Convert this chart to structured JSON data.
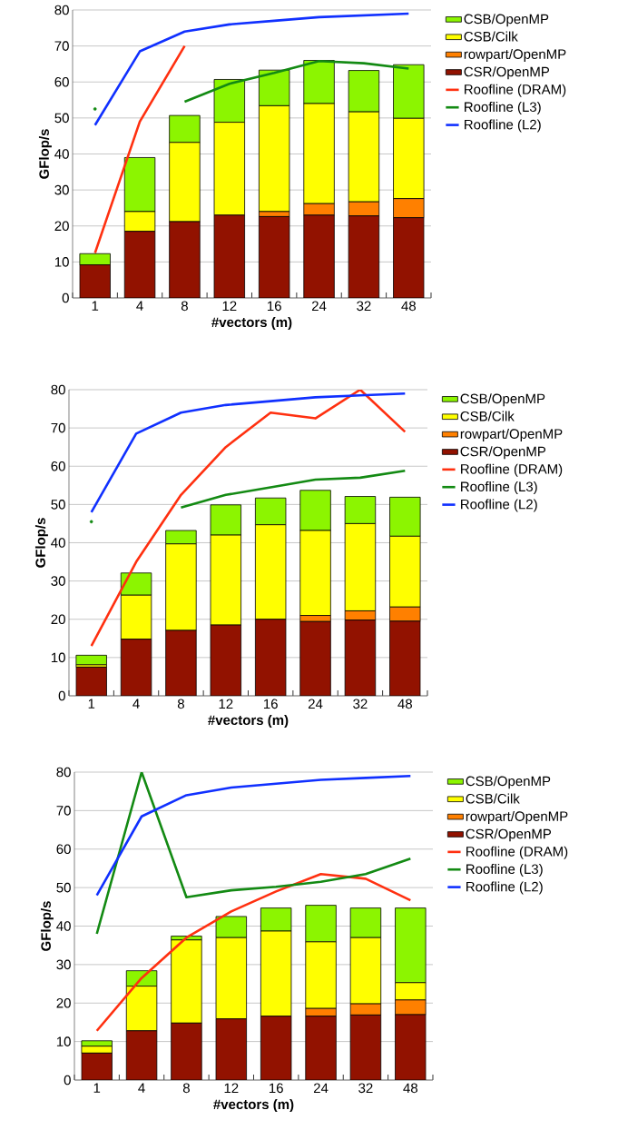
{
  "chart_data": [
    {
      "type": "bar",
      "stacked": true,
      "xlabel": "#vectors (m)",
      "ylabel": "GFlop/s",
      "categories": [
        "1",
        "4",
        "8",
        "12",
        "16",
        "24",
        "32",
        "48"
      ],
      "ylim": [
        0,
        80
      ],
      "yticks": [
        0,
        10,
        20,
        30,
        40,
        50,
        60,
        70,
        80
      ],
      "grid": "y",
      "legend": "right",
      "series": [
        {
          "name": "CSR/OpenMP",
          "color": "#921200",
          "values": [
            9.2,
            18.5,
            21.2,
            23,
            22.6,
            23,
            22.8,
            22.3
          ]
        },
        {
          "name": "rowpart/OpenMP",
          "color": "#ff8000",
          "values": [
            0,
            0,
            0,
            0,
            1.4,
            3.2,
            3.9,
            5.3
          ]
        },
        {
          "name": "CSB/Cilk",
          "color": "#ffff00",
          "values": [
            0,
            5.5,
            22,
            25.8,
            29.4,
            27.8,
            25,
            22.3
          ]
        },
        {
          "name": "CSB/OpenMP",
          "color": "#8cf500",
          "values": [
            3.1,
            15,
            7.5,
            11.9,
            9.9,
            12,
            11.5,
            14.9
          ]
        },
        {
          "name": "Roofline (DRAM)",
          "type": "line",
          "color": "#ff3010",
          "values": [
            12.5,
            49,
            70,
            null,
            null,
            null,
            null,
            null
          ]
        },
        {
          "name": "Roofline (L3)",
          "type": "line",
          "color": "#138a13",
          "values": [
            52.5,
            null,
            54.5,
            59.5,
            62.5,
            65.8,
            65.2,
            63.7
          ]
        },
        {
          "name": "Roofline (L2)",
          "type": "line",
          "color": "#1030ff",
          "values": [
            48,
            68.5,
            74,
            76,
            77,
            78,
            78.5,
            79
          ]
        }
      ]
    },
    {
      "type": "bar",
      "stacked": true,
      "xlabel": "#vectors (m)",
      "ylabel": "GFlop/s",
      "categories": [
        "1",
        "4",
        "8",
        "12",
        "16",
        "24",
        "32",
        "48"
      ],
      "ylim": [
        0,
        80
      ],
      "yticks": [
        0,
        10,
        20,
        30,
        40,
        50,
        60,
        70,
        80
      ],
      "grid": "y",
      "legend": "right",
      "series": [
        {
          "name": "CSR/OpenMP",
          "color": "#921200",
          "values": [
            7.5,
            14.8,
            17.1,
            18.5,
            20,
            19.4,
            19.8,
            19.5
          ]
        },
        {
          "name": "rowpart/OpenMP",
          "color": "#ff8000",
          "values": [
            0,
            0,
            0,
            0,
            0,
            1.6,
            2.4,
            3.7
          ]
        },
        {
          "name": "CSB/Cilk",
          "color": "#ffff00",
          "values": [
            0.6,
            11.5,
            22.6,
            23.5,
            24.7,
            22.2,
            22.8,
            18.5
          ]
        },
        {
          "name": "CSB/OpenMP",
          "color": "#8cf500",
          "values": [
            2.5,
            5.8,
            3.5,
            7.9,
            7,
            10.5,
            7.1,
            10.2
          ]
        },
        {
          "name": "Roofline (DRAM)",
          "type": "line",
          "color": "#ff3010",
          "values": [
            13,
            35,
            52.5,
            65,
            74,
            72.5,
            80,
            69
          ]
        },
        {
          "name": "Roofline (L3)",
          "type": "line",
          "color": "#138a13",
          "values": [
            45.5,
            null,
            49.2,
            52.5,
            54.5,
            56.5,
            57,
            58.8
          ]
        },
        {
          "name": "Roofline (L2)",
          "type": "line",
          "color": "#1030ff",
          "values": [
            48,
            68.5,
            74,
            76,
            77,
            78,
            78.5,
            79
          ]
        }
      ]
    },
    {
      "type": "bar",
      "stacked": true,
      "xlabel": "#vectors (m)",
      "ylabel": "GFlop/s",
      "categories": [
        "1",
        "4",
        "8",
        "12",
        "16",
        "24",
        "32",
        "48"
      ],
      "ylim": [
        0,
        80
      ],
      "yticks": [
        0,
        10,
        20,
        30,
        40,
        50,
        60,
        70,
        80
      ],
      "grid": "y",
      "legend": "right",
      "series": [
        {
          "name": "CSR/OpenMP",
          "color": "#921200",
          "values": [
            7,
            12.8,
            14.8,
            15.9,
            16.6,
            16.6,
            16.9,
            17
          ]
        },
        {
          "name": "rowpart/OpenMP",
          "color": "#ff8000",
          "values": [
            0,
            0,
            0,
            0,
            0,
            2,
            2.9,
            3.8
          ]
        },
        {
          "name": "CSB/Cilk",
          "color": "#ffff00",
          "values": [
            1.8,
            11.6,
            21.6,
            21.1,
            22.1,
            17.3,
            17.2,
            4.5
          ]
        },
        {
          "name": "CSB/OpenMP",
          "color": "#8cf500",
          "values": [
            1.4,
            4,
            1,
            5.5,
            6,
            9.5,
            7.7,
            19.4
          ]
        },
        {
          "name": "Roofline (DRAM)",
          "type": "line",
          "color": "#ff3010",
          "values": [
            12.8,
            26.5,
            37,
            43.8,
            49,
            53.5,
            52.3,
            46.7
          ]
        },
        {
          "name": "Roofline (L3)",
          "type": "line",
          "color": "#138a13",
          "values": [
            38,
            80,
            47.5,
            49.3,
            50.2,
            51.5,
            53.5,
            57.5
          ]
        },
        {
          "name": "Roofline (L2)",
          "type": "line",
          "color": "#1030ff",
          "values": [
            48,
            68.5,
            74,
            76,
            77,
            78,
            78.5,
            79
          ]
        }
      ]
    }
  ]
}
